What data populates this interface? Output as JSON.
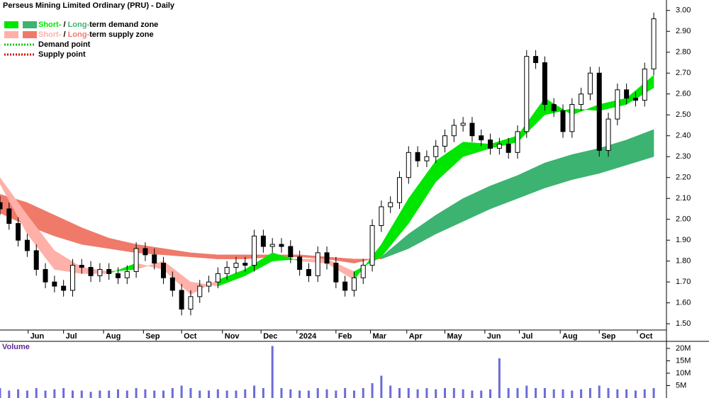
{
  "chart_data": {
    "type": "candlestick",
    "title": "Perseus Mining Limited Ordinary (PRU) - Daily",
    "x": [
      0,
      1,
      2,
      3,
      4,
      5,
      6,
      7,
      8,
      9,
      10,
      11,
      12,
      13,
      14,
      15,
      16,
      17,
      18,
      19,
      20,
      21,
      22,
      23,
      24,
      25,
      26,
      27,
      28,
      29,
      30,
      31,
      32,
      33,
      34,
      35,
      36,
      37,
      38,
      39,
      40,
      41,
      42,
      43,
      44,
      45,
      46,
      47,
      48,
      49,
      50,
      51,
      52,
      53,
      54,
      55,
      56,
      57,
      58,
      59,
      60,
      61,
      62,
      63,
      64,
      65,
      66,
      67,
      68,
      69,
      70,
      71,
      72
    ],
    "open": [
      2.08,
      2.05,
      1.98,
      1.9,
      1.85,
      1.76,
      1.7,
      1.68,
      1.66,
      1.78,
      1.77,
      1.73,
      1.76,
      1.74,
      1.72,
      1.75,
      1.86,
      1.83,
      1.79,
      1.72,
      1.66,
      1.57,
      1.63,
      1.68,
      1.7,
      1.74,
      1.77,
      1.79,
      1.78,
      1.92,
      1.87,
      1.88,
      1.87,
      1.82,
      1.76,
      1.73,
      1.84,
      1.79,
      1.7,
      1.66,
      1.72,
      1.78,
      1.97,
      2.06,
      2.08,
      2.2,
      2.32,
      2.28,
      2.3,
      2.35,
      2.4,
      2.45,
      2.46,
      2.4,
      2.38,
      2.34,
      2.36,
      2.32,
      2.42,
      2.78,
      2.75,
      2.55,
      2.52,
      2.42,
      2.55,
      2.6,
      2.7,
      2.33,
      2.48,
      2.62,
      2.58,
      2.57,
      2.72
    ],
    "high": [
      2.11,
      2.08,
      2.01,
      1.93,
      1.88,
      1.79,
      1.73,
      1.71,
      1.81,
      1.81,
      1.8,
      1.79,
      1.79,
      1.77,
      1.78,
      1.89,
      1.89,
      1.86,
      1.82,
      1.75,
      1.69,
      1.66,
      1.71,
      1.73,
      1.77,
      1.8,
      1.82,
      1.82,
      1.95,
      1.95,
      1.91,
      1.91,
      1.9,
      1.85,
      1.79,
      1.87,
      1.87,
      1.82,
      1.73,
      1.75,
      1.81,
      2.0,
      2.09,
      2.11,
      2.23,
      2.35,
      2.35,
      2.33,
      2.38,
      2.43,
      2.48,
      2.49,
      2.49,
      2.43,
      2.41,
      2.39,
      2.39,
      2.45,
      2.81,
      2.81,
      2.78,
      2.58,
      2.55,
      2.58,
      2.63,
      2.73,
      2.73,
      2.51,
      2.65,
      2.65,
      2.61,
      2.75,
      2.99
    ],
    "low": [
      2.02,
      1.95,
      1.87,
      1.82,
      1.73,
      1.67,
      1.65,
      1.63,
      1.63,
      1.74,
      1.7,
      1.7,
      1.71,
      1.69,
      1.69,
      1.72,
      1.8,
      1.76,
      1.69,
      1.63,
      1.54,
      1.54,
      1.6,
      1.65,
      1.67,
      1.71,
      1.74,
      1.75,
      1.75,
      1.84,
      1.84,
      1.84,
      1.79,
      1.73,
      1.7,
      1.7,
      1.76,
      1.67,
      1.63,
      1.63,
      1.69,
      1.75,
      1.94,
      2.03,
      2.05,
      2.17,
      2.25,
      2.25,
      2.27,
      2.32,
      2.37,
      2.42,
      2.37,
      2.35,
      2.31,
      2.31,
      2.29,
      2.29,
      2.39,
      2.72,
      2.52,
      2.49,
      2.39,
      2.39,
      2.52,
      2.57,
      2.3,
      2.3,
      2.45,
      2.55,
      2.54,
      2.54,
      2.69
    ],
    "close": [
      2.05,
      1.98,
      1.9,
      1.85,
      1.76,
      1.7,
      1.68,
      1.66,
      1.78,
      1.77,
      1.73,
      1.76,
      1.74,
      1.72,
      1.75,
      1.86,
      1.83,
      1.79,
      1.72,
      1.66,
      1.57,
      1.63,
      1.68,
      1.7,
      1.74,
      1.77,
      1.79,
      1.78,
      1.92,
      1.87,
      1.88,
      1.87,
      1.82,
      1.76,
      1.73,
      1.84,
      1.79,
      1.7,
      1.66,
      1.72,
      1.78,
      1.97,
      2.06,
      2.08,
      2.2,
      2.32,
      2.28,
      2.3,
      2.35,
      2.4,
      2.45,
      2.46,
      2.4,
      2.38,
      2.34,
      2.36,
      2.32,
      2.42,
      2.78,
      2.75,
      2.55,
      2.52,
      2.42,
      2.55,
      2.6,
      2.7,
      2.33,
      2.48,
      2.62,
      2.58,
      2.57,
      2.72,
      2.96
    ],
    "ylim": [
      1.47,
      3.05
    ],
    "yticks": [
      {
        "value": 1.5,
        "label": "1.50"
      },
      {
        "value": 1.6,
        "label": "1.60"
      },
      {
        "value": 1.7,
        "label": "1.70"
      },
      {
        "value": 1.8,
        "label": "1.80"
      },
      {
        "value": 1.9,
        "label": "1.90"
      },
      {
        "value": 2.0,
        "label": "2.00"
      },
      {
        "value": 2.1,
        "label": "2.10"
      },
      {
        "value": 2.2,
        "label": "2.20"
      },
      {
        "value": 2.3,
        "label": "2.30"
      },
      {
        "value": 2.4,
        "label": "2.40"
      },
      {
        "value": 2.5,
        "label": "2.50"
      },
      {
        "value": 2.6,
        "label": "2.60"
      },
      {
        "value": 2.7,
        "label": "2.70"
      },
      {
        "value": 2.8,
        "label": "2.80"
      },
      {
        "value": 2.9,
        "label": "2.90"
      },
      {
        "value": 3.0,
        "label": "3.00"
      }
    ],
    "xlim": [
      0,
      73.4
    ],
    "xticks": [
      {
        "value": 3.1,
        "label": "Jun"
      },
      {
        "value": 7.0,
        "label": "Jul"
      },
      {
        "value": 11.4,
        "label": "Aug"
      },
      {
        "value": 15.8,
        "label": "Sep"
      },
      {
        "value": 20.0,
        "label": "Oct"
      },
      {
        "value": 24.5,
        "label": "Nov"
      },
      {
        "value": 28.75,
        "label": "Dec"
      },
      {
        "value": 32.7,
        "label": "2024"
      },
      {
        "value": 37.0,
        "label": "Feb"
      },
      {
        "value": 40.8,
        "label": "Mar"
      },
      {
        "value": 44.8,
        "label": "Apr"
      },
      {
        "value": 49.0,
        "label": "May"
      },
      {
        "value": 53.4,
        "label": "Jun"
      },
      {
        "value": 57.2,
        "label": "Jul"
      },
      {
        "value": 61.7,
        "label": "Aug"
      },
      {
        "value": 66.0,
        "label": "Sep"
      },
      {
        "value": 70.2,
        "label": "Oct"
      }
    ],
    "bands": [
      {
        "x": [
          0,
          3,
          6,
          9,
          12,
          15,
          18,
          21,
          24,
          27,
          30,
          33,
          36,
          39,
          42,
          45,
          48,
          51,
          54,
          57,
          60,
          63,
          66,
          69,
          72
        ],
        "fast": [
          2.03,
          1.97,
          1.92,
          1.88,
          1.86,
          1.84,
          1.83,
          1.82,
          1.81,
          1.81,
          1.82,
          1.82,
          1.81,
          1.79,
          1.82,
          1.93,
          2.02,
          2.1,
          2.16,
          2.21,
          2.27,
          2.31,
          2.34,
          2.38,
          2.43
        ],
        "slow": [
          2.12,
          2.08,
          2.02,
          1.96,
          1.91,
          1.88,
          1.86,
          1.84,
          1.83,
          1.83,
          1.83,
          1.83,
          1.82,
          1.81,
          1.81,
          1.86,
          1.93,
          1.99,
          2.05,
          2.1,
          2.15,
          2.19,
          2.22,
          2.26,
          2.3
        ],
        "demand_color": "#3cb371",
        "supply_color": "#f07a6a"
      },
      {
        "x": [
          0,
          3,
          6,
          9,
          12,
          15,
          18,
          21,
          24,
          27,
          30,
          33,
          36,
          39,
          42,
          45,
          48,
          51,
          54,
          57,
          60,
          63,
          66,
          69,
          72
        ],
        "fast": [
          2.17,
          1.93,
          1.76,
          1.74,
          1.74,
          1.79,
          1.76,
          1.64,
          1.71,
          1.76,
          1.84,
          1.8,
          1.79,
          1.71,
          1.88,
          2.1,
          2.28,
          2.37,
          2.36,
          2.4,
          2.58,
          2.5,
          2.55,
          2.58,
          2.69
        ],
        "slow": [
          2.2,
          2.02,
          1.85,
          1.77,
          1.75,
          1.76,
          1.8,
          1.7,
          1.68,
          1.73,
          1.8,
          1.81,
          1.81,
          1.75,
          1.82,
          1.98,
          2.18,
          2.3,
          2.34,
          2.37,
          2.5,
          2.53,
          2.52,
          2.55,
          2.63
        ],
        "demand_color": "#00e600",
        "supply_color": "#ffb0a8"
      }
    ],
    "legend": [
      {
        "swatches": [
          "#00e600",
          "#3cb371"
        ],
        "parts": [
          {
            "text": "Short-",
            "color": "#00e600"
          },
          {
            "text": " / ",
            "color": "#000000"
          },
          {
            "text": "Long-",
            "color": "#3cb371"
          },
          {
            "text": "term demand zone",
            "color": "#000000"
          }
        ]
      },
      {
        "swatches": [
          "#ffb0a8",
          "#f07a6a"
        ],
        "parts": [
          {
            "text": "Short-",
            "color": "#ffb0a8"
          },
          {
            "text": " / ",
            "color": "#000000"
          },
          {
            "text": "Long-",
            "color": "#f07a6a"
          },
          {
            "text": "term supply zone",
            "color": "#000000"
          }
        ]
      },
      {
        "dotted": "#00cc00",
        "parts": [
          {
            "text": "Demand point",
            "color": "#000000"
          }
        ]
      },
      {
        "dotted": "#dd0000",
        "parts": [
          {
            "text": "Supply point",
            "color": "#000000"
          }
        ]
      }
    ],
    "volume": {
      "label": "Volume",
      "color": "#6b6bd6",
      "values": [
        4,
        3,
        3.5,
        3,
        4,
        3,
        3.5,
        4,
        3,
        3,
        2.5,
        3,
        3,
        3.5,
        3,
        4,
        3.5,
        3,
        3,
        4,
        5,
        4,
        3,
        3,
        3.5,
        3,
        3,
        3.5,
        5,
        4,
        21,
        4,
        3.5,
        3,
        3,
        4,
        3.5,
        3,
        4,
        3,
        4,
        6,
        9,
        5,
        4,
        4,
        3.5,
        4,
        3.5,
        4,
        4,
        3.5,
        3,
        3,
        3.5,
        16,
        4,
        4,
        5,
        4,
        4,
        3.5,
        3.5,
        3,
        3.5,
        4,
        5,
        4,
        3.5,
        3.5,
        3,
        3.5,
        4
      ],
      "ylim": [
        0,
        22
      ],
      "yticks": [
        {
          "value": 5,
          "label": "5M"
        },
        {
          "value": 10,
          "label": "10M"
        },
        {
          "value": 15,
          "label": "15M"
        },
        {
          "value": 20,
          "label": "20M"
        }
      ]
    }
  }
}
